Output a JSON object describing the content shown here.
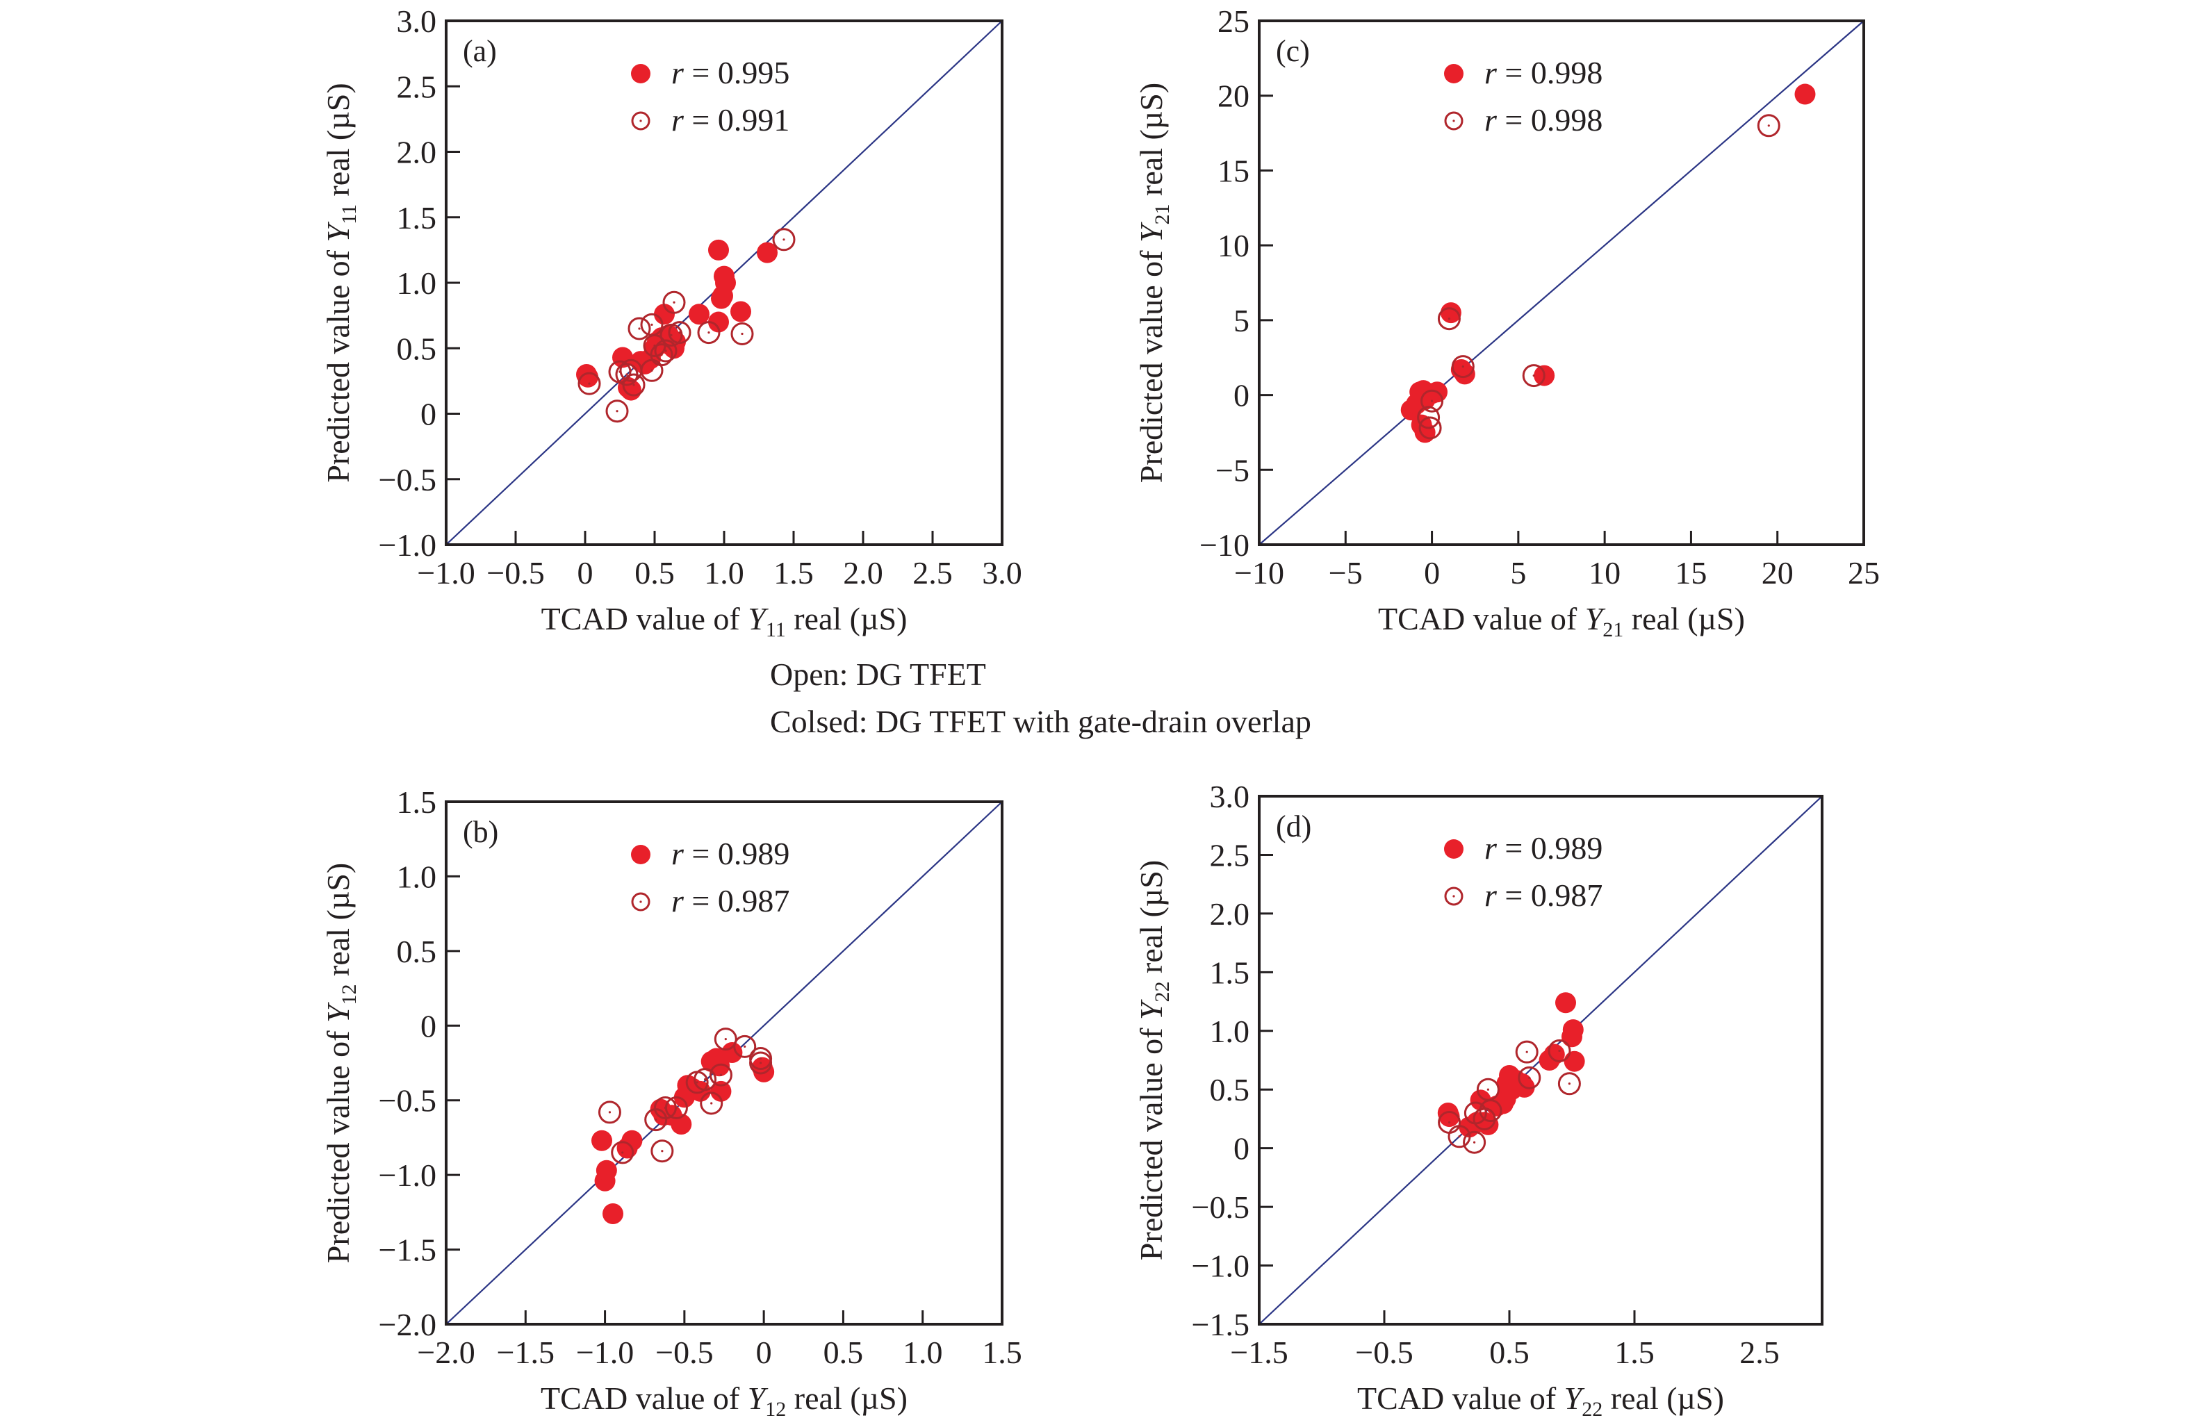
{
  "caption": {
    "line1": "Open: DG TFET",
    "line2": "Colsed: DG TFET with gate-drain overlap"
  },
  "colors": {
    "filled_marker": "#e8202a",
    "open_marker_stroke": "#b0262c",
    "diagonal_line": "#2b3585",
    "frame": "#231f20"
  },
  "chart_data": [
    {
      "id": "a",
      "type": "scatter",
      "panel_label": "(a)",
      "xlabel": {
        "prefix": "TCAD value of ",
        "var": "Y",
        "sub": "11",
        "suffix": " real (µS)"
      },
      "ylabel": {
        "prefix": "Predicted value of ",
        "var": "Y",
        "sub": "11",
        "suffix": " real (µS)"
      },
      "xlim": [
        -1.0,
        3.0
      ],
      "ylim": [
        -1.0,
        3.0
      ],
      "xticks": [
        -1.0,
        -0.5,
        0,
        0.5,
        1.0,
        1.5,
        2.0,
        2.5,
        3.0
      ],
      "xtick_labels": [
        "−1.0",
        "−0.5",
        "0",
        "0.5",
        "1.0",
        "1.5",
        "2.0",
        "2.5",
        "3.0"
      ],
      "yticks": [
        -1.0,
        -0.5,
        0,
        0.5,
        1.0,
        1.5,
        2.0,
        2.5,
        3.0
      ],
      "ytick_labels": [
        "−1.0",
        "−0.5",
        "0",
        "0.5",
        "1.0",
        "1.5",
        "2.0",
        "2.5",
        "3.0"
      ],
      "grid": false,
      "legend_position": "top-center",
      "reference_line": "y = x",
      "series": [
        {
          "name": "Closed: DG TFET with gate-drain overlap",
          "marker": "filled",
          "legend_label": "r = 0.995",
          "r": 0.995,
          "points": [
            [
              0.01,
              0.3
            ],
            [
              0.02,
              0.28
            ],
            [
              0.27,
              0.43
            ],
            [
              0.31,
              0.2
            ],
            [
              0.33,
              0.18
            ],
            [
              0.4,
              0.4
            ],
            [
              0.43,
              0.38
            ],
            [
              0.47,
              0.42
            ],
            [
              0.5,
              0.5
            ],
            [
              0.52,
              0.55
            ],
            [
              0.55,
              0.58
            ],
            [
              0.57,
              0.76
            ],
            [
              0.58,
              0.54
            ],
            [
              0.6,
              0.6
            ],
            [
              0.62,
              0.52
            ],
            [
              0.64,
              0.5
            ],
            [
              0.65,
              0.55
            ],
            [
              0.82,
              0.76
            ],
            [
              0.96,
              0.7
            ],
            [
              0.96,
              1.25
            ],
            [
              0.98,
              0.88
            ],
            [
              0.99,
              0.9
            ],
            [
              1.0,
              1.05
            ],
            [
              1.01,
              1.0
            ],
            [
              1.12,
              0.78
            ],
            [
              1.31,
              1.23
            ]
          ]
        },
        {
          "name": "Open: DG TFET",
          "marker": "open",
          "legend_label": "r = 0.991",
          "r": 0.991,
          "points": [
            [
              0.03,
              0.23
            ],
            [
              0.23,
              0.02
            ],
            [
              0.25,
              0.32
            ],
            [
              0.3,
              0.3
            ],
            [
              0.33,
              0.33
            ],
            [
              0.35,
              0.22
            ],
            [
              0.39,
              0.65
            ],
            [
              0.48,
              0.33
            ],
            [
              0.48,
              0.68
            ],
            [
              0.5,
              0.52
            ],
            [
              0.55,
              0.45
            ],
            [
              0.58,
              0.48
            ],
            [
              0.62,
              0.6
            ],
            [
              0.64,
              0.85
            ],
            [
              0.68,
              0.62
            ],
            [
              0.89,
              0.62
            ],
            [
              1.13,
              0.61
            ],
            [
              1.43,
              1.33
            ]
          ]
        }
      ]
    },
    {
      "id": "c",
      "type": "scatter",
      "panel_label": "(c)",
      "xlabel": {
        "prefix": "TCAD value of ",
        "var": "Y",
        "sub": "21",
        "suffix": " real (µS)"
      },
      "ylabel": {
        "prefix": "Predicted value of ",
        "var": "Y",
        "sub": "21",
        "suffix": " real (µS)"
      },
      "xlim": [
        -10,
        25
      ],
      "ylim": [
        -10,
        25
      ],
      "xticks": [
        -10,
        -5,
        0,
        5,
        10,
        15,
        20,
        25
      ],
      "xtick_labels": [
        "−10",
        "−5",
        "0",
        "5",
        "10",
        "15",
        "20",
        "25"
      ],
      "yticks": [
        -10,
        -5,
        0,
        5,
        10,
        15,
        20,
        25
      ],
      "ytick_labels": [
        "−10",
        "−5",
        "0",
        "5",
        "10",
        "15",
        "20",
        "25"
      ],
      "grid": false,
      "legend_position": "top-center",
      "reference_line": "y = x",
      "series": [
        {
          "name": "Closed: DG TFET with gate-drain overlap",
          "marker": "filled",
          "legend_label": "r = 0.998",
          "r": 0.998,
          "points": [
            [
              -1.2,
              -1.0
            ],
            [
              -0.9,
              -0.6
            ],
            [
              -0.7,
              0.2
            ],
            [
              -0.5,
              0.3
            ],
            [
              -0.4,
              -0.3
            ],
            [
              -0.6,
              -2.0
            ],
            [
              -0.4,
              -2.5
            ],
            [
              0.0,
              0.1
            ],
            [
              0.3,
              0.2
            ],
            [
              1.1,
              5.5
            ],
            [
              1.7,
              1.7
            ],
            [
              1.9,
              1.4
            ],
            [
              6.5,
              1.3
            ],
            [
              21.6,
              20.1
            ]
          ]
        },
        {
          "name": "Open: DG TFET",
          "marker": "open",
          "legend_label": "r = 0.998",
          "r": 0.998,
          "points": [
            [
              -0.2,
              -1.5
            ],
            [
              -0.1,
              -2.2
            ],
            [
              0.0,
              -0.4
            ],
            [
              1.0,
              5.1
            ],
            [
              1.8,
              1.9
            ],
            [
              5.9,
              1.3
            ],
            [
              19.5,
              18.0
            ]
          ]
        }
      ]
    },
    {
      "id": "b",
      "type": "scatter",
      "panel_label": "(b)",
      "xlabel": {
        "prefix": "TCAD value of ",
        "var": "Y",
        "sub": "12",
        "suffix": " real (µS)"
      },
      "ylabel": {
        "prefix": "Predicted value of ",
        "var": "Y",
        "sub": "12",
        "suffix": " real (µS)"
      },
      "xlim": [
        -2.0,
        1.5
      ],
      "ylim": [
        -2.0,
        1.5
      ],
      "xticks": [
        -2.0,
        -1.5,
        -1.0,
        -0.5,
        0,
        0.5,
        1.0,
        1.5
      ],
      "xtick_labels": [
        "−2.0",
        "−1.5",
        "−1.0",
        "−0.5",
        "0",
        "0.5",
        "1.0",
        "1.5"
      ],
      "yticks": [
        -2.0,
        -1.5,
        -1.0,
        -0.5,
        0,
        0.5,
        1.0,
        1.5
      ],
      "ytick_labels": [
        "−2.0",
        "−1.5",
        "−1.0",
        "−0.5",
        "0",
        "0.5",
        "1.0",
        "1.5"
      ],
      "grid": false,
      "legend_position": "top-center",
      "reference_line": "y = x",
      "series": [
        {
          "name": "Closed: DG TFET with gate-drain overlap",
          "marker": "filled",
          "legend_label": "r = 0.989",
          "r": 0.989,
          "points": [
            [
              -1.02,
              -0.77
            ],
            [
              -1.0,
              -1.04
            ],
            [
              -0.99,
              -0.97
            ],
            [
              -0.95,
              -1.26
            ],
            [
              -0.86,
              -0.82
            ],
            [
              -0.83,
              -0.77
            ],
            [
              -0.65,
              -0.56
            ],
            [
              -0.63,
              -0.6
            ],
            [
              -0.58,
              -0.6
            ],
            [
              -0.52,
              -0.66
            ],
            [
              -0.5,
              -0.48
            ],
            [
              -0.48,
              -0.4
            ],
            [
              -0.45,
              -0.42
            ],
            [
              -0.4,
              -0.44
            ],
            [
              -0.33,
              -0.24
            ],
            [
              -0.3,
              -0.22
            ],
            [
              -0.28,
              -0.27
            ],
            [
              -0.27,
              -0.44
            ],
            [
              -0.2,
              -0.18
            ],
            [
              -0.01,
              -0.28
            ],
            [
              0.0,
              -0.31
            ]
          ]
        },
        {
          "name": "Open: DG TFET",
          "marker": "open",
          "legend_label": "r = 0.987",
          "r": 0.987,
          "points": [
            [
              -0.97,
              -0.58
            ],
            [
              -0.89,
              -0.85
            ],
            [
              -0.68,
              -0.63
            ],
            [
              -0.64,
              -0.84
            ],
            [
              -0.62,
              -0.55
            ],
            [
              -0.55,
              -0.55
            ],
            [
              -0.42,
              -0.38
            ],
            [
              -0.37,
              -0.36
            ],
            [
              -0.33,
              -0.52
            ],
            [
              -0.27,
              -0.33
            ],
            [
              -0.24,
              -0.09
            ],
            [
              -0.12,
              -0.14
            ],
            [
              -0.02,
              -0.22
            ],
            [
              -0.02,
              -0.25
            ]
          ]
        }
      ]
    },
    {
      "id": "d",
      "type": "scatter",
      "panel_label": "(d)",
      "xlabel": {
        "prefix": "TCAD value of ",
        "var": "Y",
        "sub": "22",
        "suffix": " real (µS)"
      },
      "ylabel": {
        "prefix": "Predicted value of ",
        "var": "Y",
        "sub": "22",
        "suffix": " real (µS)"
      },
      "xlim": [
        -1.5,
        3.0
      ],
      "ylim": [
        -1.5,
        3.0
      ],
      "xticks": [
        -1.5,
        -0.5,
        0.5,
        1.5,
        2.5
      ],
      "xtick_labels": [
        "−1.5",
        "−0.5",
        "0.5",
        "1.5",
        "2.5"
      ],
      "yticks": [
        -1.5,
        -1.0,
        -0.5,
        0,
        0.5,
        1.0,
        1.5,
        2.0,
        2.5,
        3.0
      ],
      "ytick_labels": [
        "−1.5",
        "−1.0",
        "−0.5",
        "0",
        "0.5",
        "1.0",
        "1.5",
        "2.0",
        "2.5",
        "3.0"
      ],
      "grid": false,
      "legend_position": "top-center",
      "reference_line": "y = x",
      "series": [
        {
          "name": "Closed: DG TFET with gate-drain overlap",
          "marker": "filled",
          "legend_label": "r = 0.989",
          "r": 0.989,
          "points": [
            [
              0.01,
              0.3
            ],
            [
              0.02,
              0.27
            ],
            [
              0.18,
              0.18
            ],
            [
              0.24,
              0.22
            ],
            [
              0.27,
              0.41
            ],
            [
              0.3,
              0.22
            ],
            [
              0.33,
              0.2
            ],
            [
              0.4,
              0.36
            ],
            [
              0.45,
              0.38
            ],
            [
              0.47,
              0.42
            ],
            [
              0.48,
              0.55
            ],
            [
              0.5,
              0.62
            ],
            [
              0.52,
              0.5
            ],
            [
              0.55,
              0.58
            ],
            [
              0.6,
              0.55
            ],
            [
              0.62,
              0.52
            ],
            [
              0.82,
              0.75
            ],
            [
              0.86,
              0.8
            ],
            [
              0.95,
              1.24
            ],
            [
              1.0,
              0.95
            ],
            [
              1.01,
              1.01
            ],
            [
              1.02,
              0.74
            ]
          ]
        },
        {
          "name": "Open: DG TFET",
          "marker": "open",
          "legend_label": "r = 0.987",
          "r": 0.987,
          "points": [
            [
              0.02,
              0.22
            ],
            [
              0.1,
              0.1
            ],
            [
              0.22,
              0.05
            ],
            [
              0.23,
              0.3
            ],
            [
              0.3,
              0.25
            ],
            [
              0.33,
              0.5
            ],
            [
              0.35,
              0.32
            ],
            [
              0.64,
              0.82
            ],
            [
              0.66,
              0.6
            ],
            [
              0.9,
              0.83
            ],
            [
              0.98,
              0.55
            ]
          ]
        }
      ]
    }
  ]
}
